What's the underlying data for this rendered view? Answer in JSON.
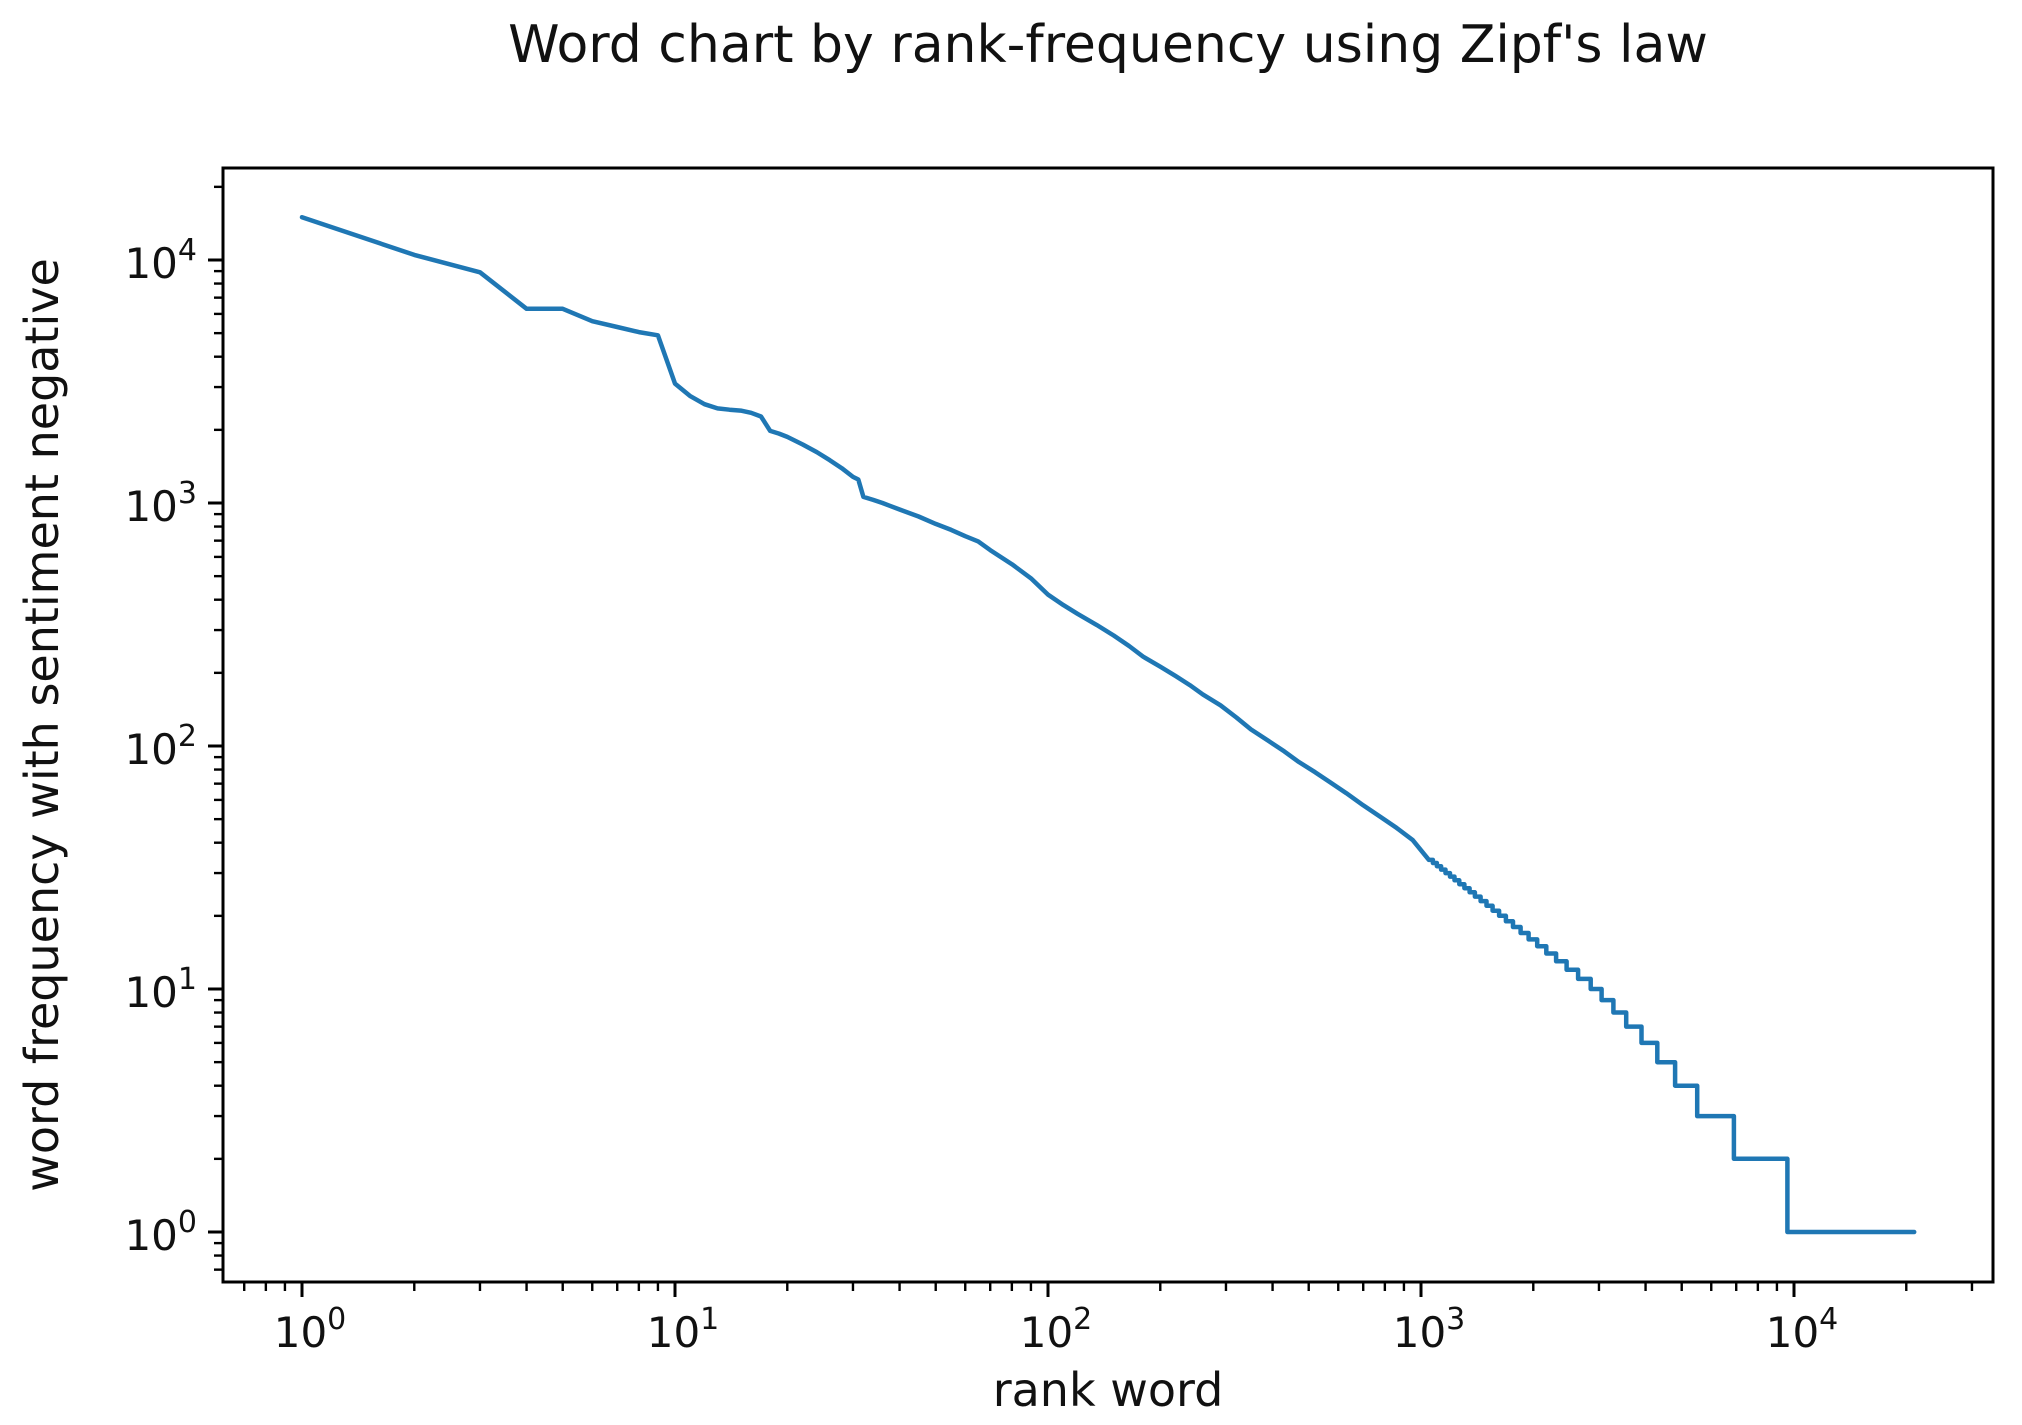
{
  "chart_data": {
    "type": "line",
    "title": "Word chart by rank-frequency using Zipf's law",
    "xlabel": "rank word",
    "ylabel": "word frequency with sentiment negative",
    "x_scale": "log",
    "y_scale": "log",
    "grid": false,
    "legend": "none",
    "x_tick_exponents": [
      0,
      1,
      2,
      3,
      4
    ],
    "y_tick_exponents": [
      0,
      1,
      2,
      3,
      4
    ],
    "xlim": [
      0.61,
      34000
    ],
    "ylim": [
      0.62,
      24000
    ],
    "line_color": "#1f77b4",
    "axis_color": "#000000",
    "series": [
      {
        "name": "word frequency",
        "points": [
          [
            1,
            15000
          ],
          [
            2,
            10500
          ],
          [
            3,
            8900
          ],
          [
            4,
            6300
          ],
          [
            5,
            6300
          ],
          [
            6,
            5600
          ],
          [
            7,
            5300
          ],
          [
            8,
            5050
          ],
          [
            9,
            4900
          ],
          [
            10,
            3100
          ],
          [
            11,
            2750
          ],
          [
            12,
            2550
          ],
          [
            13,
            2450
          ],
          [
            14,
            2420
          ],
          [
            15,
            2400
          ],
          [
            16,
            2350
          ],
          [
            17,
            2270
          ],
          [
            18,
            1980
          ],
          [
            19,
            1930
          ],
          [
            20,
            1870
          ],
          [
            22,
            1740
          ],
          [
            24,
            1620
          ],
          [
            26,
            1500
          ],
          [
            28,
            1390
          ],
          [
            30,
            1280
          ],
          [
            31,
            1250
          ],
          [
            32,
            1060
          ],
          [
            34,
            1030
          ],
          [
            36,
            1000
          ],
          [
            40,
            940
          ],
          [
            45,
            880
          ],
          [
            50,
            820
          ],
          [
            55,
            775
          ],
          [
            60,
            730
          ],
          [
            65,
            695
          ],
          [
            70,
            640
          ],
          [
            80,
            560
          ],
          [
            90,
            490
          ],
          [
            100,
            420
          ],
          [
            110,
            380
          ],
          [
            120,
            350
          ],
          [
            135,
            315
          ],
          [
            150,
            285
          ],
          [
            165,
            258
          ],
          [
            180,
            233
          ],
          [
            200,
            212
          ],
          [
            220,
            194
          ],
          [
            240,
            178
          ],
          [
            260,
            163
          ],
          [
            290,
            147
          ],
          [
            320,
            131
          ],
          [
            350,
            117
          ],
          [
            390,
            105
          ],
          [
            430,
            95
          ],
          [
            470,
            86
          ],
          [
            520,
            78
          ],
          [
            570,
            71
          ],
          [
            630,
            64
          ],
          [
            700,
            57
          ],
          [
            780,
            51
          ],
          [
            860,
            46
          ],
          [
            950,
            41
          ],
          [
            1050,
            34
          ],
          [
            1076,
            34
          ],
          [
            1076,
            33
          ],
          [
            1103,
            33
          ],
          [
            1103,
            32
          ],
          [
            1132,
            32
          ],
          [
            1132,
            31
          ],
          [
            1163,
            31
          ],
          [
            1163,
            30
          ],
          [
            1196,
            30
          ],
          [
            1196,
            29
          ],
          [
            1230,
            29
          ],
          [
            1230,
            28
          ],
          [
            1267,
            28
          ],
          [
            1267,
            27
          ],
          [
            1307,
            27
          ],
          [
            1307,
            26
          ],
          [
            1350,
            26
          ],
          [
            1350,
            25
          ],
          [
            1395,
            25
          ],
          [
            1395,
            24
          ],
          [
            1445,
            24
          ],
          [
            1445,
            23
          ],
          [
            1498,
            23
          ],
          [
            1498,
            22
          ],
          [
            1556,
            22
          ],
          [
            1556,
            21
          ],
          [
            1620,
            21
          ],
          [
            1620,
            20
          ],
          [
            1689,
            20
          ],
          [
            1689,
            19
          ],
          [
            1765,
            19
          ],
          [
            1765,
            18
          ],
          [
            1849,
            18
          ],
          [
            1849,
            17
          ],
          [
            1943,
            17
          ],
          [
            1943,
            16
          ],
          [
            2049,
            16
          ],
          [
            2049,
            15
          ],
          [
            2167,
            15
          ],
          [
            2167,
            14
          ],
          [
            2302,
            14
          ],
          [
            2302,
            13
          ],
          [
            2457,
            13
          ],
          [
            2457,
            12
          ],
          [
            2638,
            12
          ],
          [
            2638,
            11
          ],
          [
            2851,
            11
          ],
          [
            2851,
            10
          ],
          [
            3050,
            10
          ],
          [
            3050,
            9
          ],
          [
            3280,
            9
          ],
          [
            3280,
            8
          ],
          [
            3550,
            8
          ],
          [
            3550,
            7
          ],
          [
            3900,
            7
          ],
          [
            3900,
            6
          ],
          [
            4300,
            6
          ],
          [
            4300,
            5
          ],
          [
            4800,
            5
          ],
          [
            4800,
            4
          ],
          [
            5500,
            4
          ],
          [
            5500,
            3
          ],
          [
            6900,
            3
          ],
          [
            6900,
            2
          ],
          [
            9600,
            2
          ],
          [
            9600,
            1
          ],
          [
            21000,
            1
          ]
        ]
      }
    ]
  }
}
